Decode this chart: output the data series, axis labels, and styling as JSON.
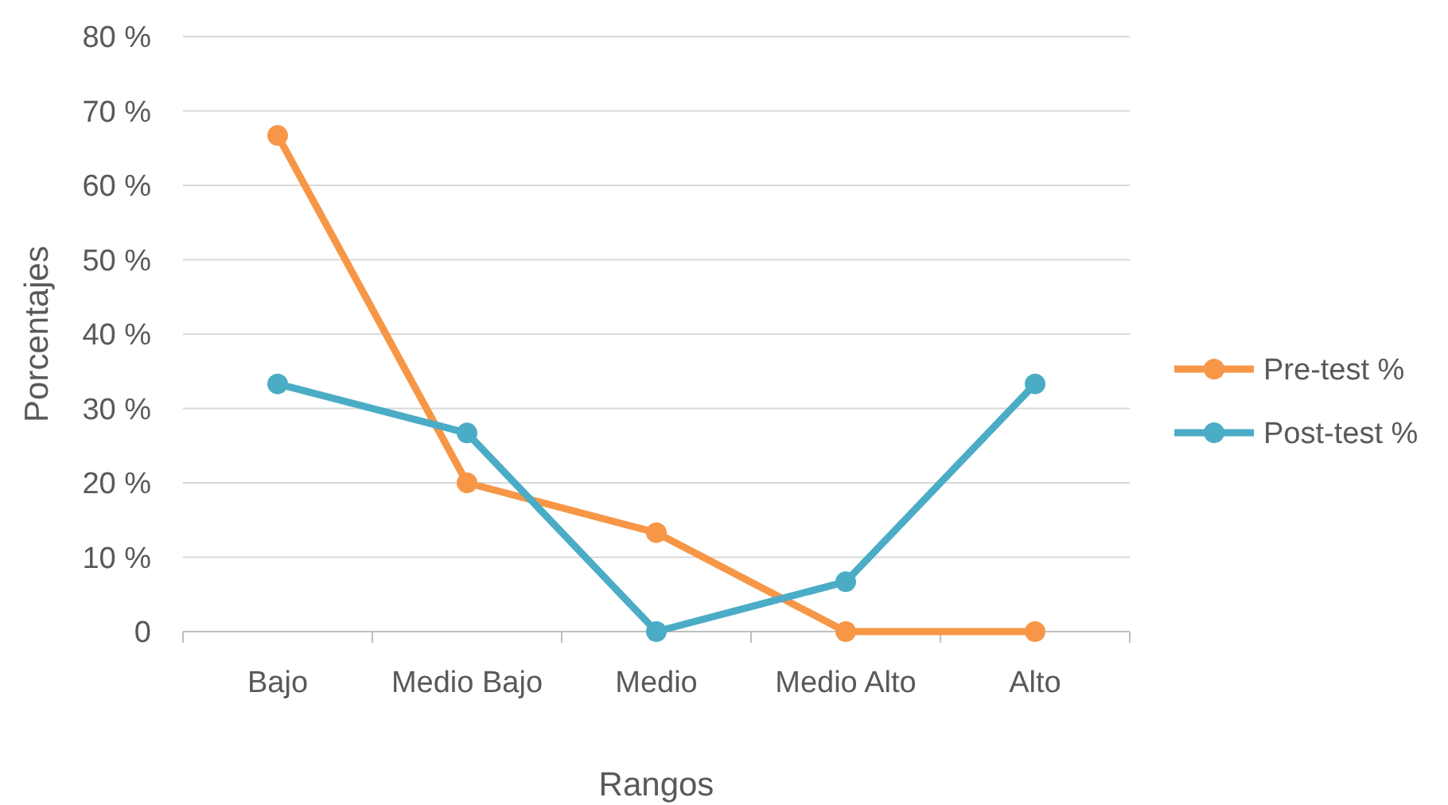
{
  "chart_data": {
    "type": "line",
    "xlabel": "Rangos",
    "ylabel": "Porcentajes",
    "categories": [
      "Bajo",
      "Medio Bajo",
      "Medio",
      "Medio Alto",
      "Alto"
    ],
    "series": [
      {
        "name": "Pre-test %",
        "color": "#f79646",
        "values": [
          66.7,
          20,
          13.3,
          0,
          0
        ]
      },
      {
        "name": "Post-test %",
        "color": "#4bacc6",
        "values": [
          33.3,
          26.7,
          0,
          6.7,
          33.3
        ]
      }
    ],
    "ylim": [
      0,
      80
    ],
    "yticks": [
      {
        "value": 0,
        "label": "0"
      },
      {
        "value": 10,
        "label": "10 %"
      },
      {
        "value": 20,
        "label": "20 %"
      },
      {
        "value": 30,
        "label": "30 %"
      },
      {
        "value": 40,
        "label": "40 %"
      },
      {
        "value": 50,
        "label": "50 %"
      },
      {
        "value": 60,
        "label": "60 %"
      },
      {
        "value": 70,
        "label": "70 %"
      },
      {
        "value": 80,
        "label": "80 %"
      }
    ],
    "grid": "y",
    "legend": "right",
    "marker": "circle",
    "line_style": "solid"
  }
}
